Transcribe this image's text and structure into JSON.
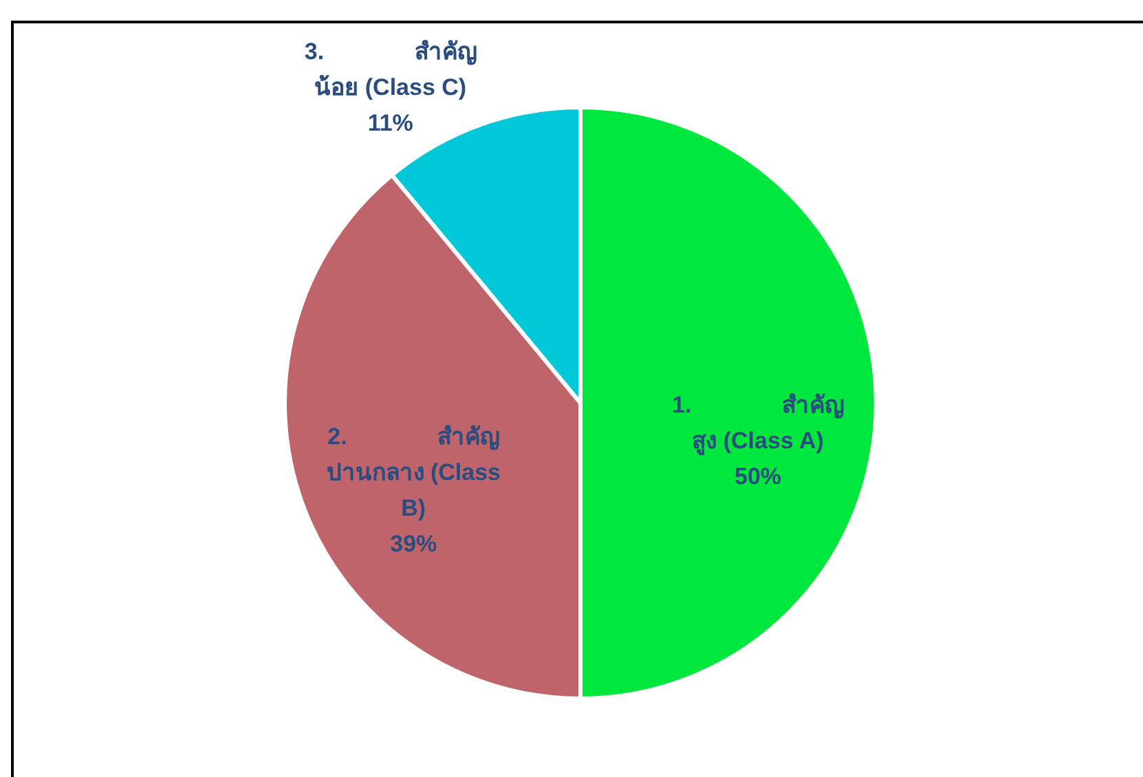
{
  "chart_data": {
    "type": "pie",
    "categories": [
      "1.\tสำคัญสูง (Class A)",
      "2.\tสำคัญปานกลาง (Class B)",
      "3.\tสำคัญน้อย (Class C)"
    ],
    "values": [
      50,
      39,
      11
    ],
    "colors": [
      "#00e83e",
      "#c0646c",
      "#00c8d8"
    ],
    "value_labels": [
      "50%",
      "39%",
      "11%"
    ]
  }
}
